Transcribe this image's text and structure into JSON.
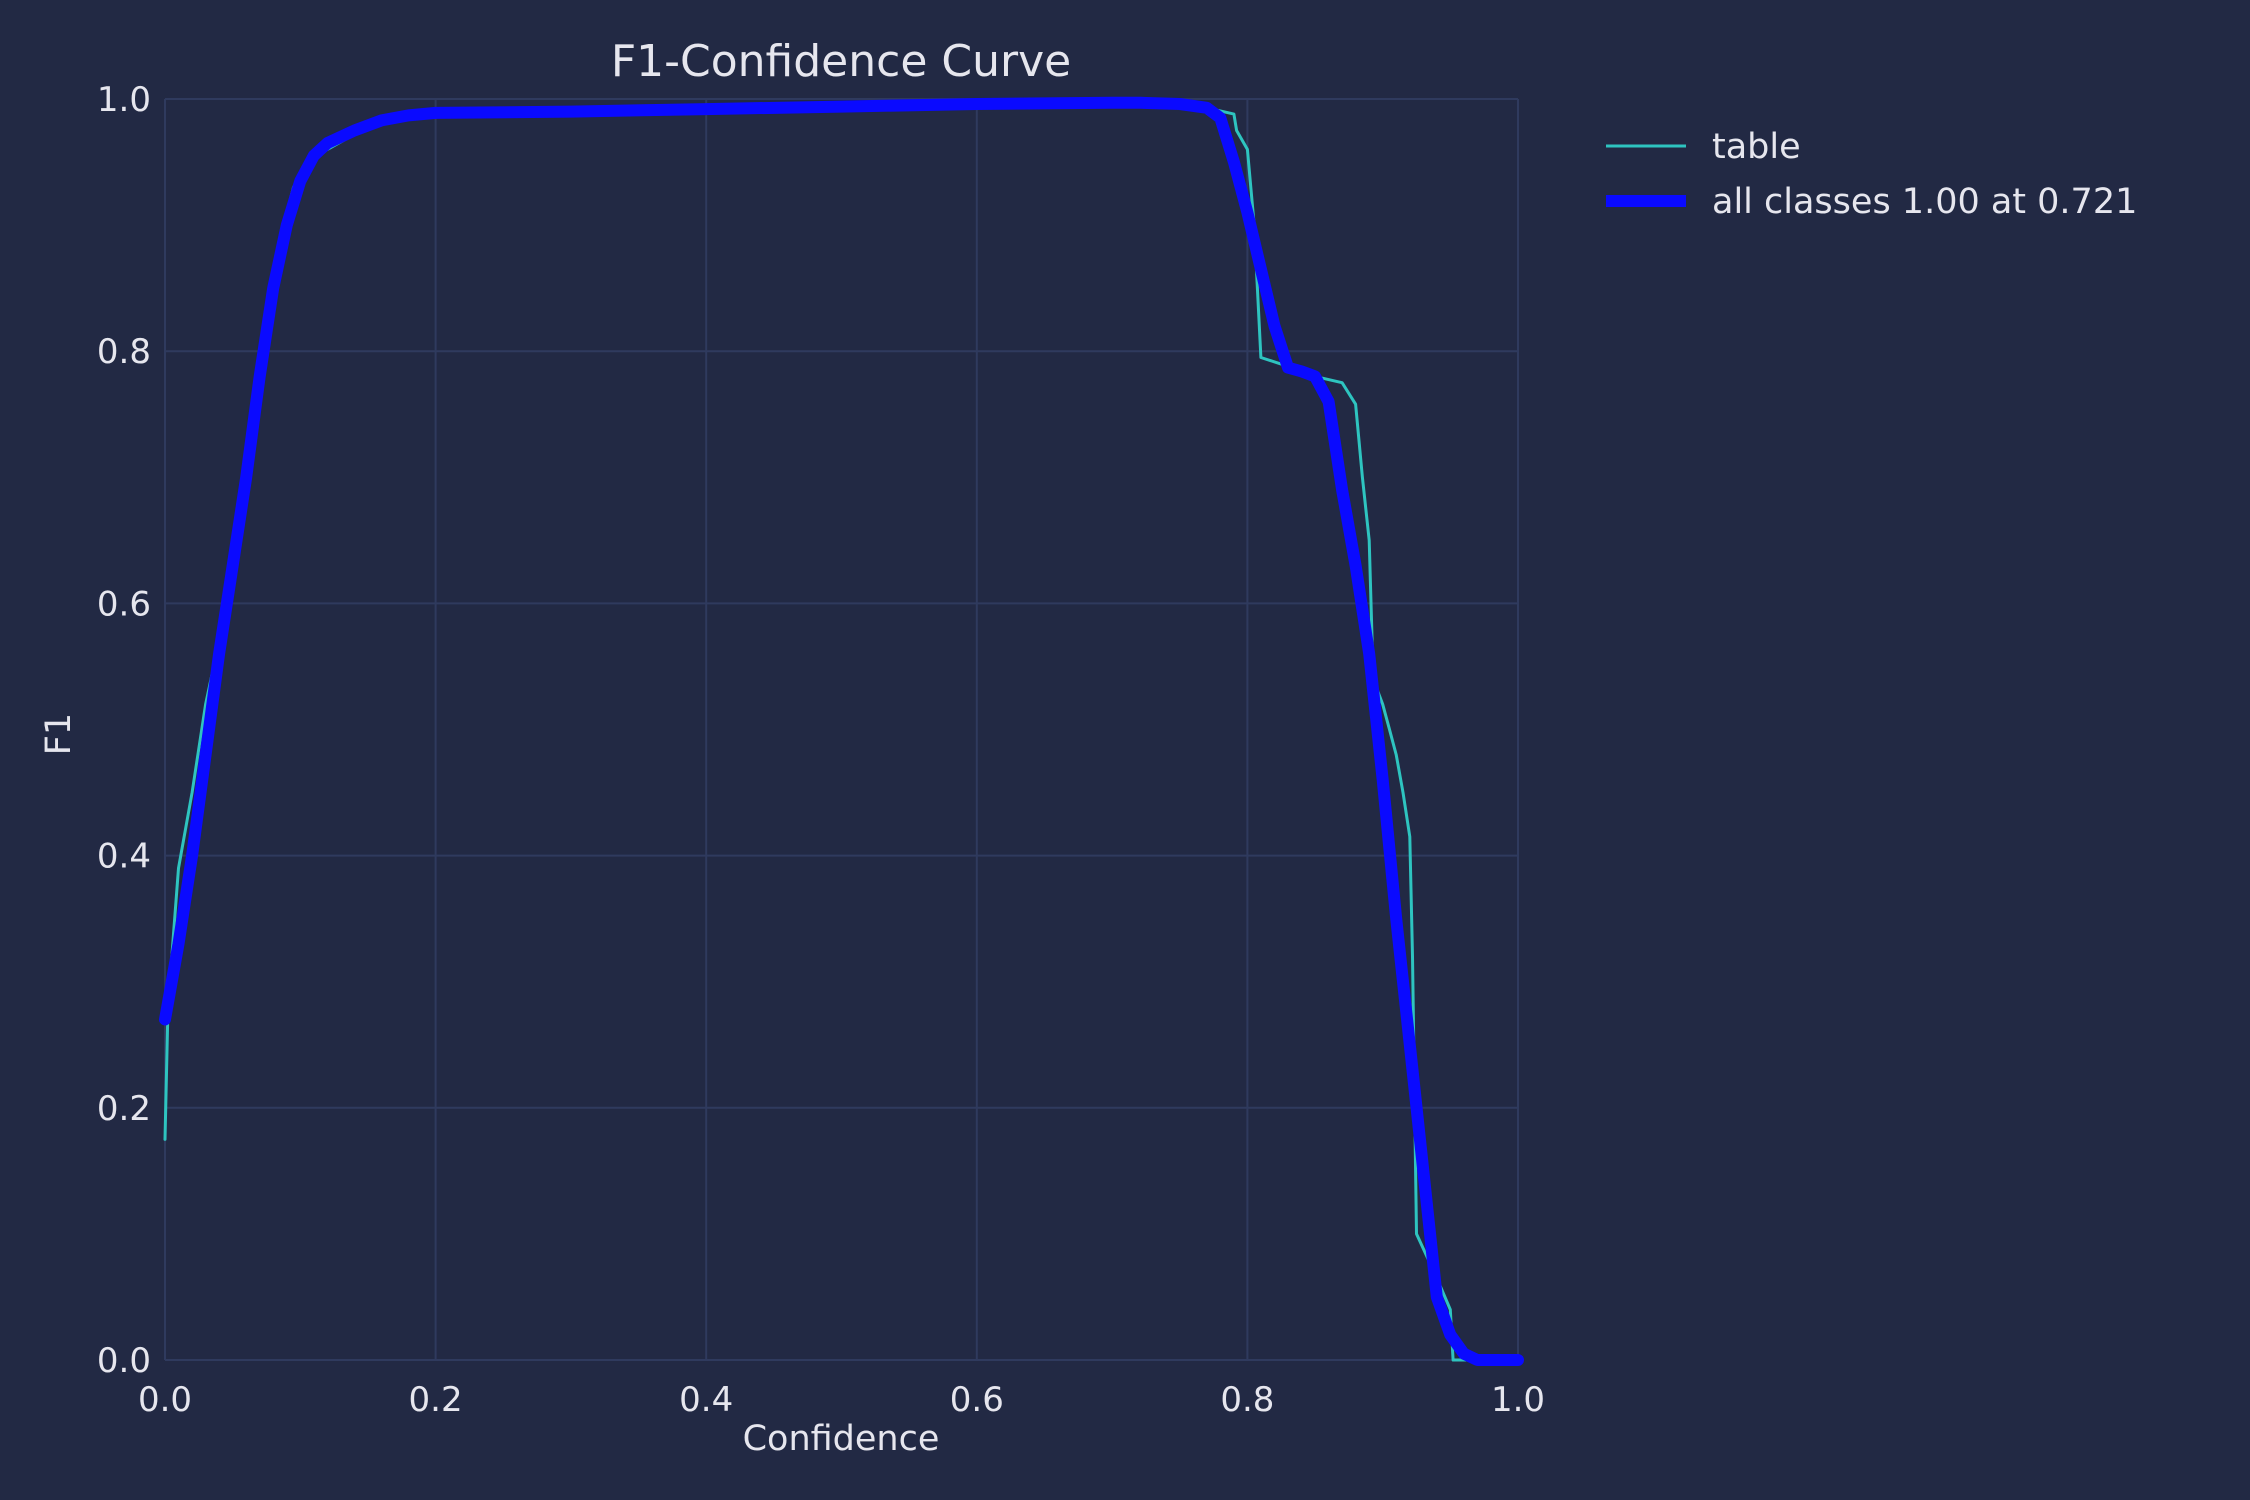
{
  "chart_data": {
    "type": "line",
    "title": "F1-Confidence Curve",
    "xlabel": "Confidence",
    "ylabel": "F1",
    "xlim": [
      0,
      1
    ],
    "ylim": [
      0,
      1
    ],
    "xticks": [
      "0.0",
      "0.2",
      "0.4",
      "0.6",
      "0.8",
      "1.0"
    ],
    "yticks": [
      "0.0",
      "0.2",
      "0.4",
      "0.6",
      "0.8",
      "1.0"
    ],
    "grid": true,
    "legend_position": "outside-top-right",
    "colors": {
      "background": "#222944",
      "grid": "#2f3a5e",
      "text": "#e6e6ee",
      "table": "#2ec4c0",
      "all_classes": "#0a0aff"
    },
    "series": [
      {
        "name": "table",
        "color": "#2ec4c0",
        "x": [
          0.0,
          0.002,
          0.005,
          0.01,
          0.02,
          0.03,
          0.04,
          0.05,
          0.06,
          0.07,
          0.08,
          0.09,
          0.095,
          0.1,
          0.105,
          0.12,
          0.14,
          0.16,
          0.18,
          0.2,
          0.3,
          0.4,
          0.5,
          0.6,
          0.7,
          0.75,
          0.77,
          0.79,
          0.792,
          0.8,
          0.805,
          0.81,
          0.83,
          0.85,
          0.87,
          0.88,
          0.885,
          0.89,
          0.893,
          0.9,
          0.905,
          0.91,
          0.915,
          0.92,
          0.922,
          0.925,
          0.94,
          0.95,
          0.952,
          0.955,
          0.97,
          1.0
        ],
        "y": [
          0.175,
          0.27,
          0.32,
          0.39,
          0.45,
          0.52,
          0.57,
          0.64,
          0.7,
          0.77,
          0.84,
          0.91,
          0.93,
          0.94,
          0.95,
          0.96,
          0.972,
          0.98,
          0.985,
          0.988,
          0.99,
          0.993,
          0.995,
          0.997,
          0.997,
          0.996,
          0.993,
          0.988,
          0.975,
          0.96,
          0.9,
          0.795,
          0.788,
          0.78,
          0.775,
          0.758,
          0.7,
          0.65,
          0.54,
          0.52,
          0.5,
          0.48,
          0.45,
          0.415,
          0.32,
          0.1,
          0.065,
          0.04,
          0.0,
          0.0,
          0.0,
          0.0
        ]
      },
      {
        "name": "all classes 1.00 at 0.721",
        "color": "#0a0aff",
        "x": [
          0.0,
          0.01,
          0.02,
          0.03,
          0.04,
          0.05,
          0.06,
          0.07,
          0.08,
          0.09,
          0.1,
          0.11,
          0.12,
          0.14,
          0.16,
          0.18,
          0.2,
          0.3,
          0.4,
          0.5,
          0.6,
          0.7,
          0.721,
          0.75,
          0.77,
          0.78,
          0.79,
          0.8,
          0.81,
          0.82,
          0.83,
          0.84,
          0.85,
          0.86,
          0.87,
          0.88,
          0.89,
          0.9,
          0.91,
          0.92,
          0.93,
          0.94,
          0.95,
          0.96,
          0.97,
          0.98,
          0.99,
          1.0
        ],
        "y": [
          0.27,
          0.33,
          0.4,
          0.48,
          0.56,
          0.63,
          0.7,
          0.78,
          0.85,
          0.9,
          0.935,
          0.955,
          0.965,
          0.975,
          0.983,
          0.987,
          0.989,
          0.99,
          0.992,
          0.994,
          0.996,
          0.997,
          0.997,
          0.996,
          0.993,
          0.985,
          0.95,
          0.91,
          0.865,
          0.82,
          0.787,
          0.784,
          0.78,
          0.76,
          0.69,
          0.63,
          0.56,
          0.46,
          0.35,
          0.25,
          0.15,
          0.05,
          0.02,
          0.005,
          0.0,
          0.0,
          0.0,
          0.0
        ]
      }
    ]
  }
}
